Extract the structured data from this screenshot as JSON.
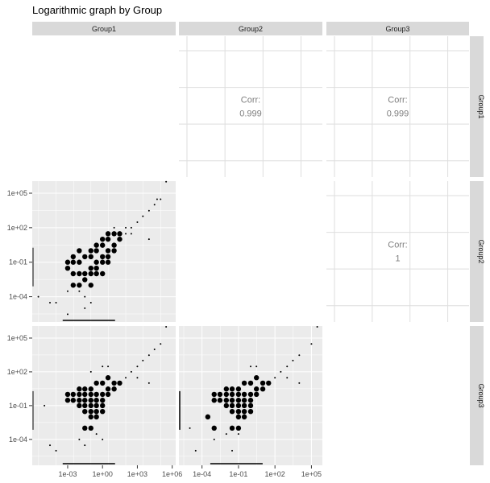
{
  "chart_data": {
    "type": "scatter",
    "title": "Logarithmic graph by Group",
    "variables": [
      "Group1",
      "Group2",
      "Group3"
    ],
    "scale": "log10",
    "grid": true,
    "correlations": [
      {
        "row": "Group1",
        "col": "Group2",
        "label": "Corr:",
        "value": "0.999"
      },
      {
        "row": "Group1",
        "col": "Group3",
        "label": "Corr:",
        "value": "0.999"
      },
      {
        "row": "Group2",
        "col": "Group3",
        "label": "Corr:",
        "value": "1"
      }
    ],
    "y_ticks": [
      "1e+05",
      "1e+02",
      "1e-01",
      "1e-04"
    ],
    "x_ticks": {
      "Group1": [
        "1e-03",
        "1e+00",
        "1e+03",
        "1e+06"
      ],
      "Group2": [
        "1e-04",
        "1e-01",
        "1e+02",
        "1e+05"
      ]
    },
    "panels": [
      {
        "row": "Group2",
        "col": "Group1",
        "color": "#000000",
        "points": [
          [
            0.01,
            0.01
          ],
          [
            0.03,
            0.01
          ],
          [
            0.1,
            0.03
          ],
          [
            0.3,
            0.1
          ],
          [
            1,
            0.3
          ],
          [
            3,
            1
          ],
          [
            10,
            3
          ],
          [
            30,
            10
          ],
          [
            100,
            30
          ],
          [
            300,
            100
          ],
          [
            1000,
            300
          ],
          [
            3000,
            1000
          ],
          [
            10000.0,
            3000
          ],
          [
            30000.0,
            10000.0
          ],
          [
            50000.0,
            30000.0
          ],
          [
            0.01,
            0.001
          ],
          [
            0.03,
            0.003
          ],
          [
            0.1,
            0.01
          ],
          [
            0.3,
            0.03
          ],
          [
            1,
            0.1
          ],
          [
            3,
            0.3
          ],
          [
            0.01,
            0.1
          ],
          [
            0.03,
            0.3
          ],
          [
            0.1,
            1
          ],
          [
            0.3,
            3
          ],
          [
            1,
            10
          ],
          [
            3,
            30
          ],
          [
            10,
            100
          ],
          [
            0.003,
            0.01
          ],
          [
            0.003,
            0.001
          ],
          [
            0.001,
            0.03
          ],
          [
            0.001,
            0.1
          ],
          [
            0.003,
            0.1
          ],
          [
            0.1,
            0.001
          ],
          [
            0.3,
            0.01
          ],
          [
            1,
            0.01
          ],
          [
            3,
            0.1
          ],
          [
            10,
            1
          ],
          [
            0.01,
            0.0003
          ],
          [
            0.03,
            0.0001
          ],
          [
            0.001,
            0.0003
          ],
          [
            3e-06,
            0.0001
          ],
          [
            3e-05,
            3e-05
          ],
          [
            0.0001,
            3e-05
          ],
          [
            0.001,
            3e-06
          ],
          [
            0.03,
            1e-05
          ],
          [
            0.1,
            3e-05
          ],
          [
            10000.0,
            10
          ],
          [
            300000.0,
            1000000.0
          ],
          [
            100000.0,
            30000.0
          ],
          [
            0.01,
            1
          ],
          [
            0.003,
            0.3
          ],
          [
            100.0,
            100.0
          ],
          [
            300,
            30
          ],
          [
            30,
            30
          ],
          [
            0.1,
            0.3
          ],
          [
            0.3,
            1
          ],
          [
            1,
            3
          ],
          [
            3,
            10
          ],
          [
            10,
            30
          ]
        ]
      },
      {
        "row": "Group3",
        "col": "Group1",
        "color": "#000000",
        "points": [
          [
            0.001,
            1
          ],
          [
            0.003,
            1
          ],
          [
            0.01,
            1
          ],
          [
            0.03,
            1
          ],
          [
            0.1,
            1
          ],
          [
            0.3,
            1
          ],
          [
            1,
            1
          ],
          [
            3,
            3
          ],
          [
            10,
            3
          ],
          [
            30,
            10
          ],
          [
            100,
            30
          ],
          [
            300,
            100
          ],
          [
            1000,
            300
          ],
          [
            3000,
            1000
          ],
          [
            10000.0,
            3000
          ],
          [
            30000.0,
            10000.0
          ],
          [
            0.001,
            0.3
          ],
          [
            0.003,
            0.3
          ],
          [
            0.01,
            0.3
          ],
          [
            0.03,
            0.3
          ],
          [
            0.1,
            0.3
          ],
          [
            0.3,
            0.3
          ],
          [
            1,
            0.3
          ],
          [
            3,
            1
          ],
          [
            0.01,
            0.1
          ],
          [
            0.03,
            0.1
          ],
          [
            0.1,
            0.1
          ],
          [
            0.3,
            0.1
          ],
          [
            1,
            0.1
          ],
          [
            0.03,
            0.03
          ],
          [
            0.1,
            0.03
          ],
          [
            0.3,
            0.03
          ],
          [
            0.1,
            0.01
          ],
          [
            0.3,
            0.01
          ],
          [
            1,
            0.03
          ],
          [
            0.01,
            3
          ],
          [
            0.03,
            3
          ],
          [
            0.1,
            3
          ],
          [
            0.3,
            10
          ],
          [
            1,
            10
          ],
          [
            3,
            30
          ],
          [
            10,
            10
          ],
          [
            0.1,
            0.001
          ],
          [
            0.03,
            0.001
          ],
          [
            0.3,
            0.0003
          ],
          [
            1,
            0.0001
          ],
          [
            0.03,
            3e-05
          ],
          [
            1e-05,
            0.1
          ],
          [
            0.0001,
            1e-05
          ],
          [
            3e-05,
            3e-05
          ],
          [
            0.01,
            0.0001
          ],
          [
            0.1,
            100.0
          ],
          [
            1,
            300
          ],
          [
            3,
            300
          ],
          [
            10000.0,
            10
          ],
          [
            300000.0,
            1000000.0
          ],
          [
            100000.0,
            30000.0
          ],
          [
            1000.0,
            30
          ]
        ]
      },
      {
        "row": "Group3",
        "col": "Group2",
        "color": "#000000",
        "points": [
          [
            0.001,
            1
          ],
          [
            0.003,
            1
          ],
          [
            0.01,
            1
          ],
          [
            0.03,
            1
          ],
          [
            0.1,
            1
          ],
          [
            0.3,
            1
          ],
          [
            1,
            1
          ],
          [
            3,
            3
          ],
          [
            10,
            3
          ],
          [
            30,
            10
          ],
          [
            100,
            30
          ],
          [
            300,
            100
          ],
          [
            1000,
            300
          ],
          [
            3000,
            1000
          ],
          [
            10000.0,
            3000
          ],
          [
            0.001,
            0.3
          ],
          [
            0.003,
            0.3
          ],
          [
            0.01,
            0.3
          ],
          [
            0.03,
            0.3
          ],
          [
            0.1,
            0.3
          ],
          [
            0.3,
            0.3
          ],
          [
            1,
            0.3
          ],
          [
            3,
            1
          ],
          [
            0.01,
            0.1
          ],
          [
            0.03,
            0.1
          ],
          [
            0.1,
            0.1
          ],
          [
            0.3,
            0.1
          ],
          [
            1,
            0.1
          ],
          [
            0.03,
            0.03
          ],
          [
            0.1,
            0.03
          ],
          [
            0.3,
            0.03
          ],
          [
            0.1,
            0.01
          ],
          [
            0.3,
            0.01
          ],
          [
            1,
            0.03
          ],
          [
            0.01,
            3
          ],
          [
            0.03,
            3
          ],
          [
            0.1,
            3
          ],
          [
            0.3,
            10
          ],
          [
            1,
            10
          ],
          [
            3,
            30
          ],
          [
            10,
            10
          ],
          [
            0.1,
            0.001
          ],
          [
            0.03,
            0.001
          ],
          [
            0.1,
            0.0003
          ],
          [
            0.001,
            0.001
          ],
          [
            0.0003,
            0.01
          ],
          [
            3e-05,
            1e-05
          ],
          [
            0.001,
            0.0001
          ],
          [
            0.01,
            0.0003
          ],
          [
            0.03,
            1e-05
          ],
          [
            1e-05,
            0.001
          ],
          [
            1,
            300
          ],
          [
            3,
            300
          ],
          [
            10000.0,
            10
          ],
          [
            300000.0,
            1000000.0
          ],
          [
            100000.0,
            30000.0
          ],
          [
            1000.0,
            30
          ]
        ]
      }
    ]
  }
}
